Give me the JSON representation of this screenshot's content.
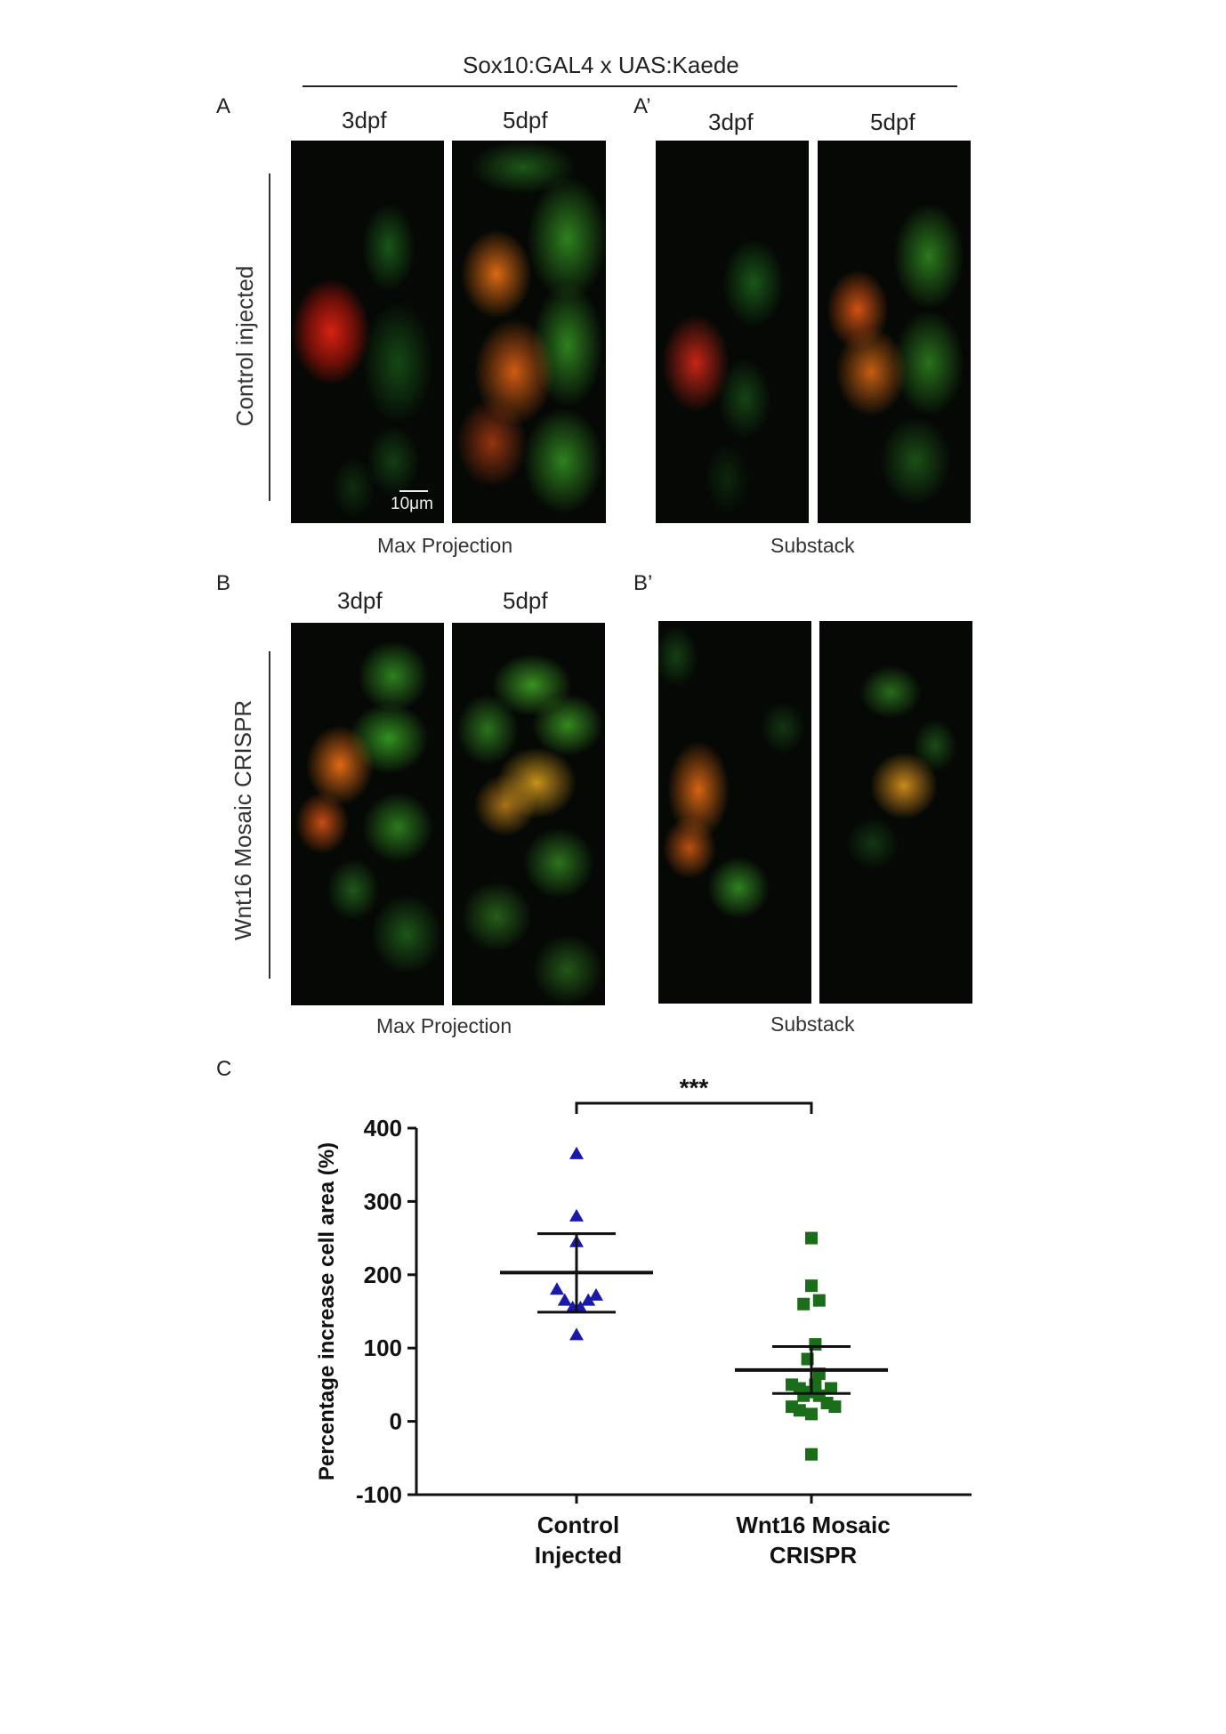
{
  "header": {
    "title": "Sox10:GAL4 x UAS:Kaede"
  },
  "panels": {
    "A": {
      "letter": "A",
      "col1": "3dpf",
      "col2": "5dpf",
      "caption": "Max Projection"
    },
    "A_prime": {
      "letter": "A’",
      "col1": "3dpf",
      "col2": "5dpf",
      "caption": "Substack"
    },
    "B": {
      "letter": "B",
      "col1": "3dpf",
      "col2": "5dpf",
      "caption": "Max Projection"
    },
    "B_prime": {
      "letter": "B’",
      "caption": "Substack"
    },
    "C": {
      "letter": "C"
    }
  },
  "row_labels": {
    "control": "Control injected",
    "wnt16": "Wnt16 Mosaic CRISPR"
  },
  "scale_bar": {
    "label": "10μm"
  },
  "colors": {
    "control": "#1a1aa8",
    "wnt16": "#1a6e1a",
    "kaede_green": "#2fa32f",
    "kaede_red": "#d42a12"
  },
  "chart_data": {
    "type": "scatter",
    "ylabel": "Percentage increase cell area (%)",
    "ylim": [
      -100,
      400
    ],
    "yticks": [
      400,
      300,
      200,
      100,
      0,
      -100
    ],
    "categories": [
      "Control Injected",
      "Wnt16 Mosaic CRISPR"
    ],
    "category_lines": [
      [
        "Control",
        "Injected"
      ],
      [
        "Wnt16 Mosaic",
        "CRISPR"
      ]
    ],
    "significance": "***",
    "series": [
      {
        "category": "Control Injected",
        "marker": "triangle",
        "color": "#1a1aa8",
        "values": [
          365,
          280,
          245,
          180,
          165,
          155,
          155,
          165,
          172,
          118
        ],
        "offsets": [
          0,
          0,
          0,
          -0.5,
          -0.3,
          -0.1,
          0.1,
          0.3,
          0.5,
          0
        ],
        "mean": 203,
        "sd_upper": 256,
        "sd_lower": 149
      },
      {
        "category": "Wnt16 Mosaic CRISPR",
        "marker": "square",
        "color": "#1a6e1a",
        "values": [
          250,
          185,
          165,
          160,
          105,
          85,
          65,
          50,
          45,
          40,
          50,
          45,
          35,
          35,
          25,
          20,
          15,
          20,
          10,
          -45
        ],
        "offsets": [
          0,
          0,
          0.2,
          -0.2,
          0.1,
          -0.1,
          0.2,
          -0.5,
          -0.3,
          -0.1,
          0.1,
          0.5,
          -0.2,
          0.2,
          0.4,
          -0.5,
          -0.3,
          0.6,
          0,
          0
        ],
        "mean": 70,
        "sd_upper": 102,
        "sd_lower": 38
      }
    ]
  }
}
